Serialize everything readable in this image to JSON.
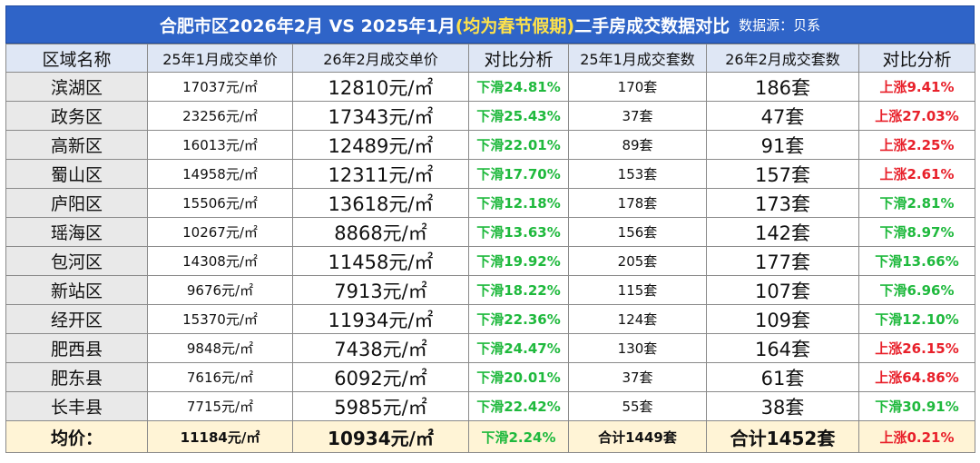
{
  "title": {
    "prefix": "合肥市区2026年2月 VS 2025年1月",
    "highlight": "(均为春节假期)",
    "suffix": "二手房成交数据对比",
    "source": "数据源：贝系"
  },
  "headers": [
    "区域名称",
    "25年1月成交单价",
    "26年2月成交单价",
    "对比分析",
    "25年1月成交套数",
    "26年2月成交套数",
    "对比分析"
  ],
  "colors": {
    "title_bg": "#2f64c8",
    "highlight": "#ffe24a",
    "down": "#1fb93d",
    "up": "#e8202a",
    "footer_bg": "#fff4d6"
  },
  "rows": [
    {
      "area": "滨湖区",
      "price_2501": "17037元/㎡",
      "price_2602": "12810元/㎡",
      "price_change": "下滑24.81%",
      "price_dir": "down",
      "units_2501": "170套",
      "units_2602": "186套",
      "units_change": "上涨9.41%",
      "units_dir": "up"
    },
    {
      "area": "政务区",
      "price_2501": "23256元/㎡",
      "price_2602": "17343元/㎡",
      "price_change": "下滑25.43%",
      "price_dir": "down",
      "units_2501": "37套",
      "units_2602": "47套",
      "units_change": "上涨27.03%",
      "units_dir": "up"
    },
    {
      "area": "高新区",
      "price_2501": "16013元/㎡",
      "price_2602": "12489元/㎡",
      "price_change": "下滑22.01%",
      "price_dir": "down",
      "units_2501": "89套",
      "units_2602": "91套",
      "units_change": "上涨2.25%",
      "units_dir": "up"
    },
    {
      "area": "蜀山区",
      "price_2501": "14958元/㎡",
      "price_2602": "12311元/㎡",
      "price_change": "下滑17.70%",
      "price_dir": "down",
      "units_2501": "153套",
      "units_2602": "157套",
      "units_change": "上涨2.61%",
      "units_dir": "up"
    },
    {
      "area": "庐阳区",
      "price_2501": "15506元/㎡",
      "price_2602": "13618元/㎡",
      "price_change": "下滑12.18%",
      "price_dir": "down",
      "units_2501": "178套",
      "units_2602": "173套",
      "units_change": "下滑2.81%",
      "units_dir": "down"
    },
    {
      "area": "瑶海区",
      "price_2501": "10267元/㎡",
      "price_2602": "8868元/㎡",
      "price_change": "下滑13.63%",
      "price_dir": "down",
      "units_2501": "156套",
      "units_2602": "142套",
      "units_change": "下滑8.97%",
      "units_dir": "down"
    },
    {
      "area": "包河区",
      "price_2501": "14308元/㎡",
      "price_2602": "11458元/㎡",
      "price_change": "下滑19.92%",
      "price_dir": "down",
      "units_2501": "205套",
      "units_2602": "177套",
      "units_change": "下滑13.66%",
      "units_dir": "down"
    },
    {
      "area": "新站区",
      "price_2501": "9676元/㎡",
      "price_2602": "7913元/㎡",
      "price_change": "下滑18.22%",
      "price_dir": "down",
      "units_2501": "115套",
      "units_2602": "107套",
      "units_change": "下滑6.96%",
      "units_dir": "down"
    },
    {
      "area": "经开区",
      "price_2501": "15370元/㎡",
      "price_2602": "11934元/㎡",
      "price_change": "下滑22.36%",
      "price_dir": "down",
      "units_2501": "124套",
      "units_2602": "109套",
      "units_change": "下滑12.10%",
      "units_dir": "down"
    },
    {
      "area": "肥西县",
      "price_2501": "9848元/㎡",
      "price_2602": "7438元/㎡",
      "price_change": "下滑24.47%",
      "price_dir": "down",
      "units_2501": "130套",
      "units_2602": "164套",
      "units_change": "上涨26.15%",
      "units_dir": "up"
    },
    {
      "area": "肥东县",
      "price_2501": "7616元/㎡",
      "price_2602": "6092元/㎡",
      "price_change": "下滑20.01%",
      "price_dir": "down",
      "units_2501": "37套",
      "units_2602": "61套",
      "units_change": "上涨64.86%",
      "units_dir": "up"
    },
    {
      "area": "长丰县",
      "price_2501": "7715元/㎡",
      "price_2602": "5985元/㎡",
      "price_change": "下滑22.42%",
      "price_dir": "down",
      "units_2501": "55套",
      "units_2602": "38套",
      "units_change": "下滑30.91%",
      "units_dir": "down"
    }
  ],
  "footer": {
    "label": "均价：",
    "price_2501": "11184元/㎡",
    "price_2602": "10934元/㎡",
    "price_change": "下滑2.24%",
    "price_dir": "down",
    "units_2501": "合计1449套",
    "units_2602": "合计1452套",
    "units_change": "上涨0.21%",
    "units_dir": "up"
  }
}
